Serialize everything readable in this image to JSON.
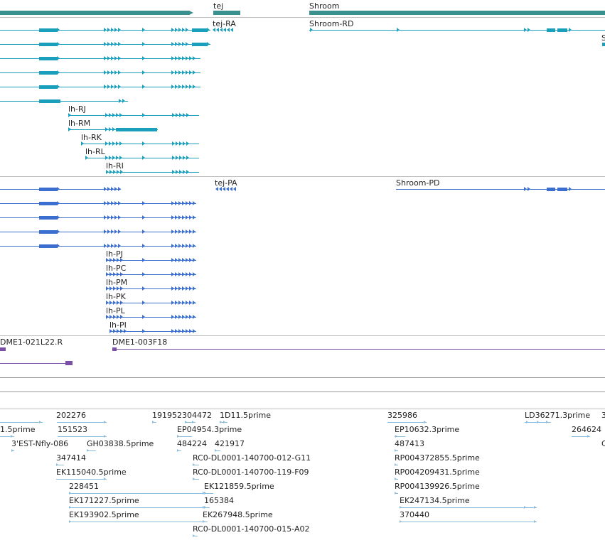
{
  "colors": {
    "gene": "#3a8f8f",
    "transcript": "#1aa0bd",
    "protein": "#3b6fcf",
    "clone": "#7a4fa6",
    "est": "#8cbcdc",
    "divider": "#bdbdbd"
  },
  "gene_track": {
    "labels": [
      {
        "name": "gene-label-tej",
        "text": "tej"
      },
      {
        "name": "gene-label-shroom",
        "text": "Shroom"
      }
    ]
  },
  "transcript_track": {
    "labels": [
      {
        "name": "transcript-label-tej-ra",
        "text": "tej-RA"
      },
      {
        "name": "transcript-label-shroom-rd",
        "text": "Shroom-RD"
      },
      {
        "name": "transcript-label-edge",
        "text": "S"
      },
      {
        "name": "transcript-label-lh-rj",
        "text": "lh-RJ"
      },
      {
        "name": "transcript-label-lh-rm",
        "text": "lh-RM"
      },
      {
        "name": "transcript-label-lh-rk",
        "text": "lh-RK"
      },
      {
        "name": "transcript-label-lh-rl",
        "text": "lh-RL"
      },
      {
        "name": "transcript-label-lh-ri",
        "text": "lh-RI"
      }
    ]
  },
  "protein_track": {
    "labels": [
      {
        "name": "protein-label-tej-pa",
        "text": "tej-PA"
      },
      {
        "name": "protein-label-shroom-pd",
        "text": "Shroom-PD"
      },
      {
        "name": "protein-label-lh-pj",
        "text": "lh-PJ"
      },
      {
        "name": "protein-label-lh-pc",
        "text": "lh-PC"
      },
      {
        "name": "protein-label-lh-pm",
        "text": "lh-PM"
      },
      {
        "name": "protein-label-lh-pk",
        "text": "lh-PK"
      },
      {
        "name": "protein-label-lh-pl",
        "text": "lh-PL"
      },
      {
        "name": "protein-label-lh-pi",
        "text": "lh-PI"
      }
    ]
  },
  "clone_track": {
    "labels": [
      {
        "name": "clone-label-dme1-021l22-r",
        "text": "DME1-021L22.R"
      },
      {
        "name": "clone-label-dme1-003f18",
        "text": "DME1-003F18"
      }
    ]
  },
  "est_track": {
    "labels": [
      {
        "name": "est-label-202276",
        "text": "202276"
      },
      {
        "name": "est-label-191952304472",
        "text": "191952304472"
      },
      {
        "name": "est-label-1d11",
        "text": "1D11.5prime"
      },
      {
        "name": "est-label-325986",
        "text": "325986"
      },
      {
        "name": "est-label-ld36271",
        "text": "LD36271.3prime"
      },
      {
        "name": "est-label-edge-1",
        "text": "3"
      },
      {
        "name": "est-label-1-5prime",
        "text": "1.5prime"
      },
      {
        "name": "est-label-151523",
        "text": "151523"
      },
      {
        "name": "est-label-ep04954",
        "text": "EP04954.3prime"
      },
      {
        "name": "est-label-ep10632",
        "text": "EP10632.3prime"
      },
      {
        "name": "est-label-264624",
        "text": "264624"
      },
      {
        "name": "est-label-3est-nfly-086",
        "text": "3'EST-Nfly-086"
      },
      {
        "name": "est-label-gh03838",
        "text": "GH03838.5prime"
      },
      {
        "name": "est-label-484224",
        "text": "484224"
      },
      {
        "name": "est-label-421917",
        "text": "421917"
      },
      {
        "name": "est-label-487413",
        "text": "487413"
      },
      {
        "name": "est-label-edge-2",
        "text": "C"
      },
      {
        "name": "est-label-347414",
        "text": "347414"
      },
      {
        "name": "est-label-rc0-012-g11",
        "text": "RC0-DL0001-140700-012-G11"
      },
      {
        "name": "est-label-rp004372855",
        "text": "RP004372855.5prime"
      },
      {
        "name": "est-label-ek115040",
        "text": "EK115040.5prime"
      },
      {
        "name": "est-label-rc0-119-f09",
        "text": "RC0-DL0001-140700-119-F09"
      },
      {
        "name": "est-label-rp004209431",
        "text": "RP004209431.5prime"
      },
      {
        "name": "est-label-228451",
        "text": "228451"
      },
      {
        "name": "est-label-ek121859",
        "text": "EK121859.5prime"
      },
      {
        "name": "est-label-rp004139926",
        "text": "RP004139926.5prime"
      },
      {
        "name": "est-label-ek171227",
        "text": "EK171227.5prime"
      },
      {
        "name": "est-label-165384",
        "text": "165384"
      },
      {
        "name": "est-label-ek247134",
        "text": "EK247134.5prime"
      },
      {
        "name": "est-label-ek193902",
        "text": "EK193902.5prime"
      },
      {
        "name": "est-label-ek267948",
        "text": "EK267948.5prime"
      },
      {
        "name": "est-label-370440",
        "text": "370440"
      },
      {
        "name": "est-label-rc0-015-a02",
        "text": "RC0-DL0001-140700-015-A02"
      }
    ]
  }
}
